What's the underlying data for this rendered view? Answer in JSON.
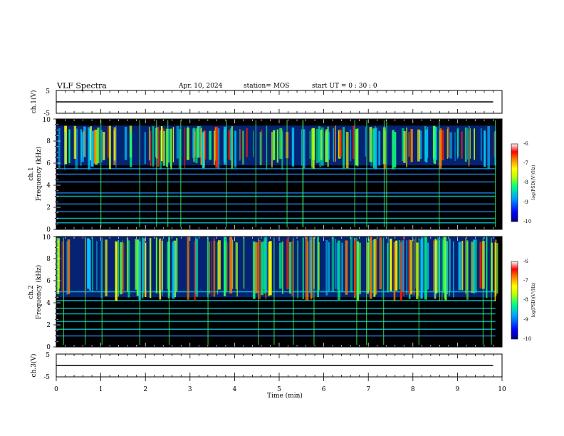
{
  "header": {
    "title": "VLF Spectra",
    "date": "Apr. 10, 2024",
    "station": "station= MOS",
    "start": "start  UT =   0  : 30 : 0"
  },
  "chart_data": [
    {
      "type": "line",
      "panel": "ch1-waveform",
      "ylabel": "ch.1(V)",
      "ylim": [
        -5,
        5
      ],
      "yticks": [
        "5",
        "-5"
      ],
      "xlim": [
        0,
        10
      ],
      "series": [
        {
          "x": [
            0,
            9.8
          ],
          "y": [
            0,
            0
          ]
        }
      ]
    },
    {
      "type": "heatmap",
      "panel": "ch1-spectrogram",
      "ylabel": "ch.1",
      "ylabel2": "Frequency (kHz)",
      "ylim": [
        0,
        10
      ],
      "xlim": [
        0,
        10
      ],
      "yticks": [
        "0",
        "2",
        "4",
        "6",
        "8",
        "10"
      ],
      "color_scale": {
        "label": "log(PSD)(V²/Hz)",
        "range": [
          -10,
          -6
        ],
        "ticks": [
          "-6",
          "-7",
          "-8",
          "-9",
          "-10"
        ],
        "colors": [
          "#000080",
          "#0000ff",
          "#00a0ff",
          "#00ff80",
          "#c0ff00",
          "#ffff00",
          "#ff8000",
          "#ff0000",
          "#ffffff"
        ]
      },
      "bands_khz": [
        0.6,
        1.0,
        1.6,
        2.3,
        3.0,
        3.3,
        4.3,
        5.0,
        5.5
      ],
      "emission_khz": [
        5.8,
        9.4
      ]
    },
    {
      "type": "heatmap",
      "panel": "ch2-spectrogram",
      "ylabel": "ch.2",
      "ylabel2": "Frequency (kHz)",
      "ylim": [
        0,
        10
      ],
      "xlim": [
        0,
        10
      ],
      "yticks": [
        "0",
        "2",
        "4",
        "6",
        "8",
        "10"
      ],
      "color_scale": {
        "label": "log(PSD)(V²/Hz)",
        "range": [
          -10,
          -6
        ],
        "ticks": [
          "-6",
          "-7",
          "-8",
          "-9",
          "-10"
        ],
        "colors": [
          "#000080",
          "#0000ff",
          "#00a0ff",
          "#00ff80",
          "#c0ff00",
          "#ffff00",
          "#ff8000",
          "#ff0000",
          "#ffffff"
        ]
      },
      "bands_khz": [
        1.0,
        1.6,
        2.3,
        3.0,
        3.5,
        4.2,
        5.0
      ],
      "emission_khz": [
        4.5,
        10.0
      ]
    },
    {
      "type": "line",
      "panel": "ch3-waveform",
      "ylabel": "ch.3(V)",
      "ylim": [
        -5,
        5
      ],
      "yticks": [
        "5",
        "-5"
      ],
      "xlim": [
        0,
        10
      ],
      "series": [
        {
          "x": [
            0,
            9.8
          ],
          "y": [
            0,
            0
          ]
        }
      ]
    }
  ],
  "xaxis": {
    "label": "Time  (min)",
    "ticks": [
      "0",
      "1",
      "2",
      "3",
      "4",
      "5",
      "6",
      "7",
      "8",
      "9",
      "10"
    ]
  }
}
